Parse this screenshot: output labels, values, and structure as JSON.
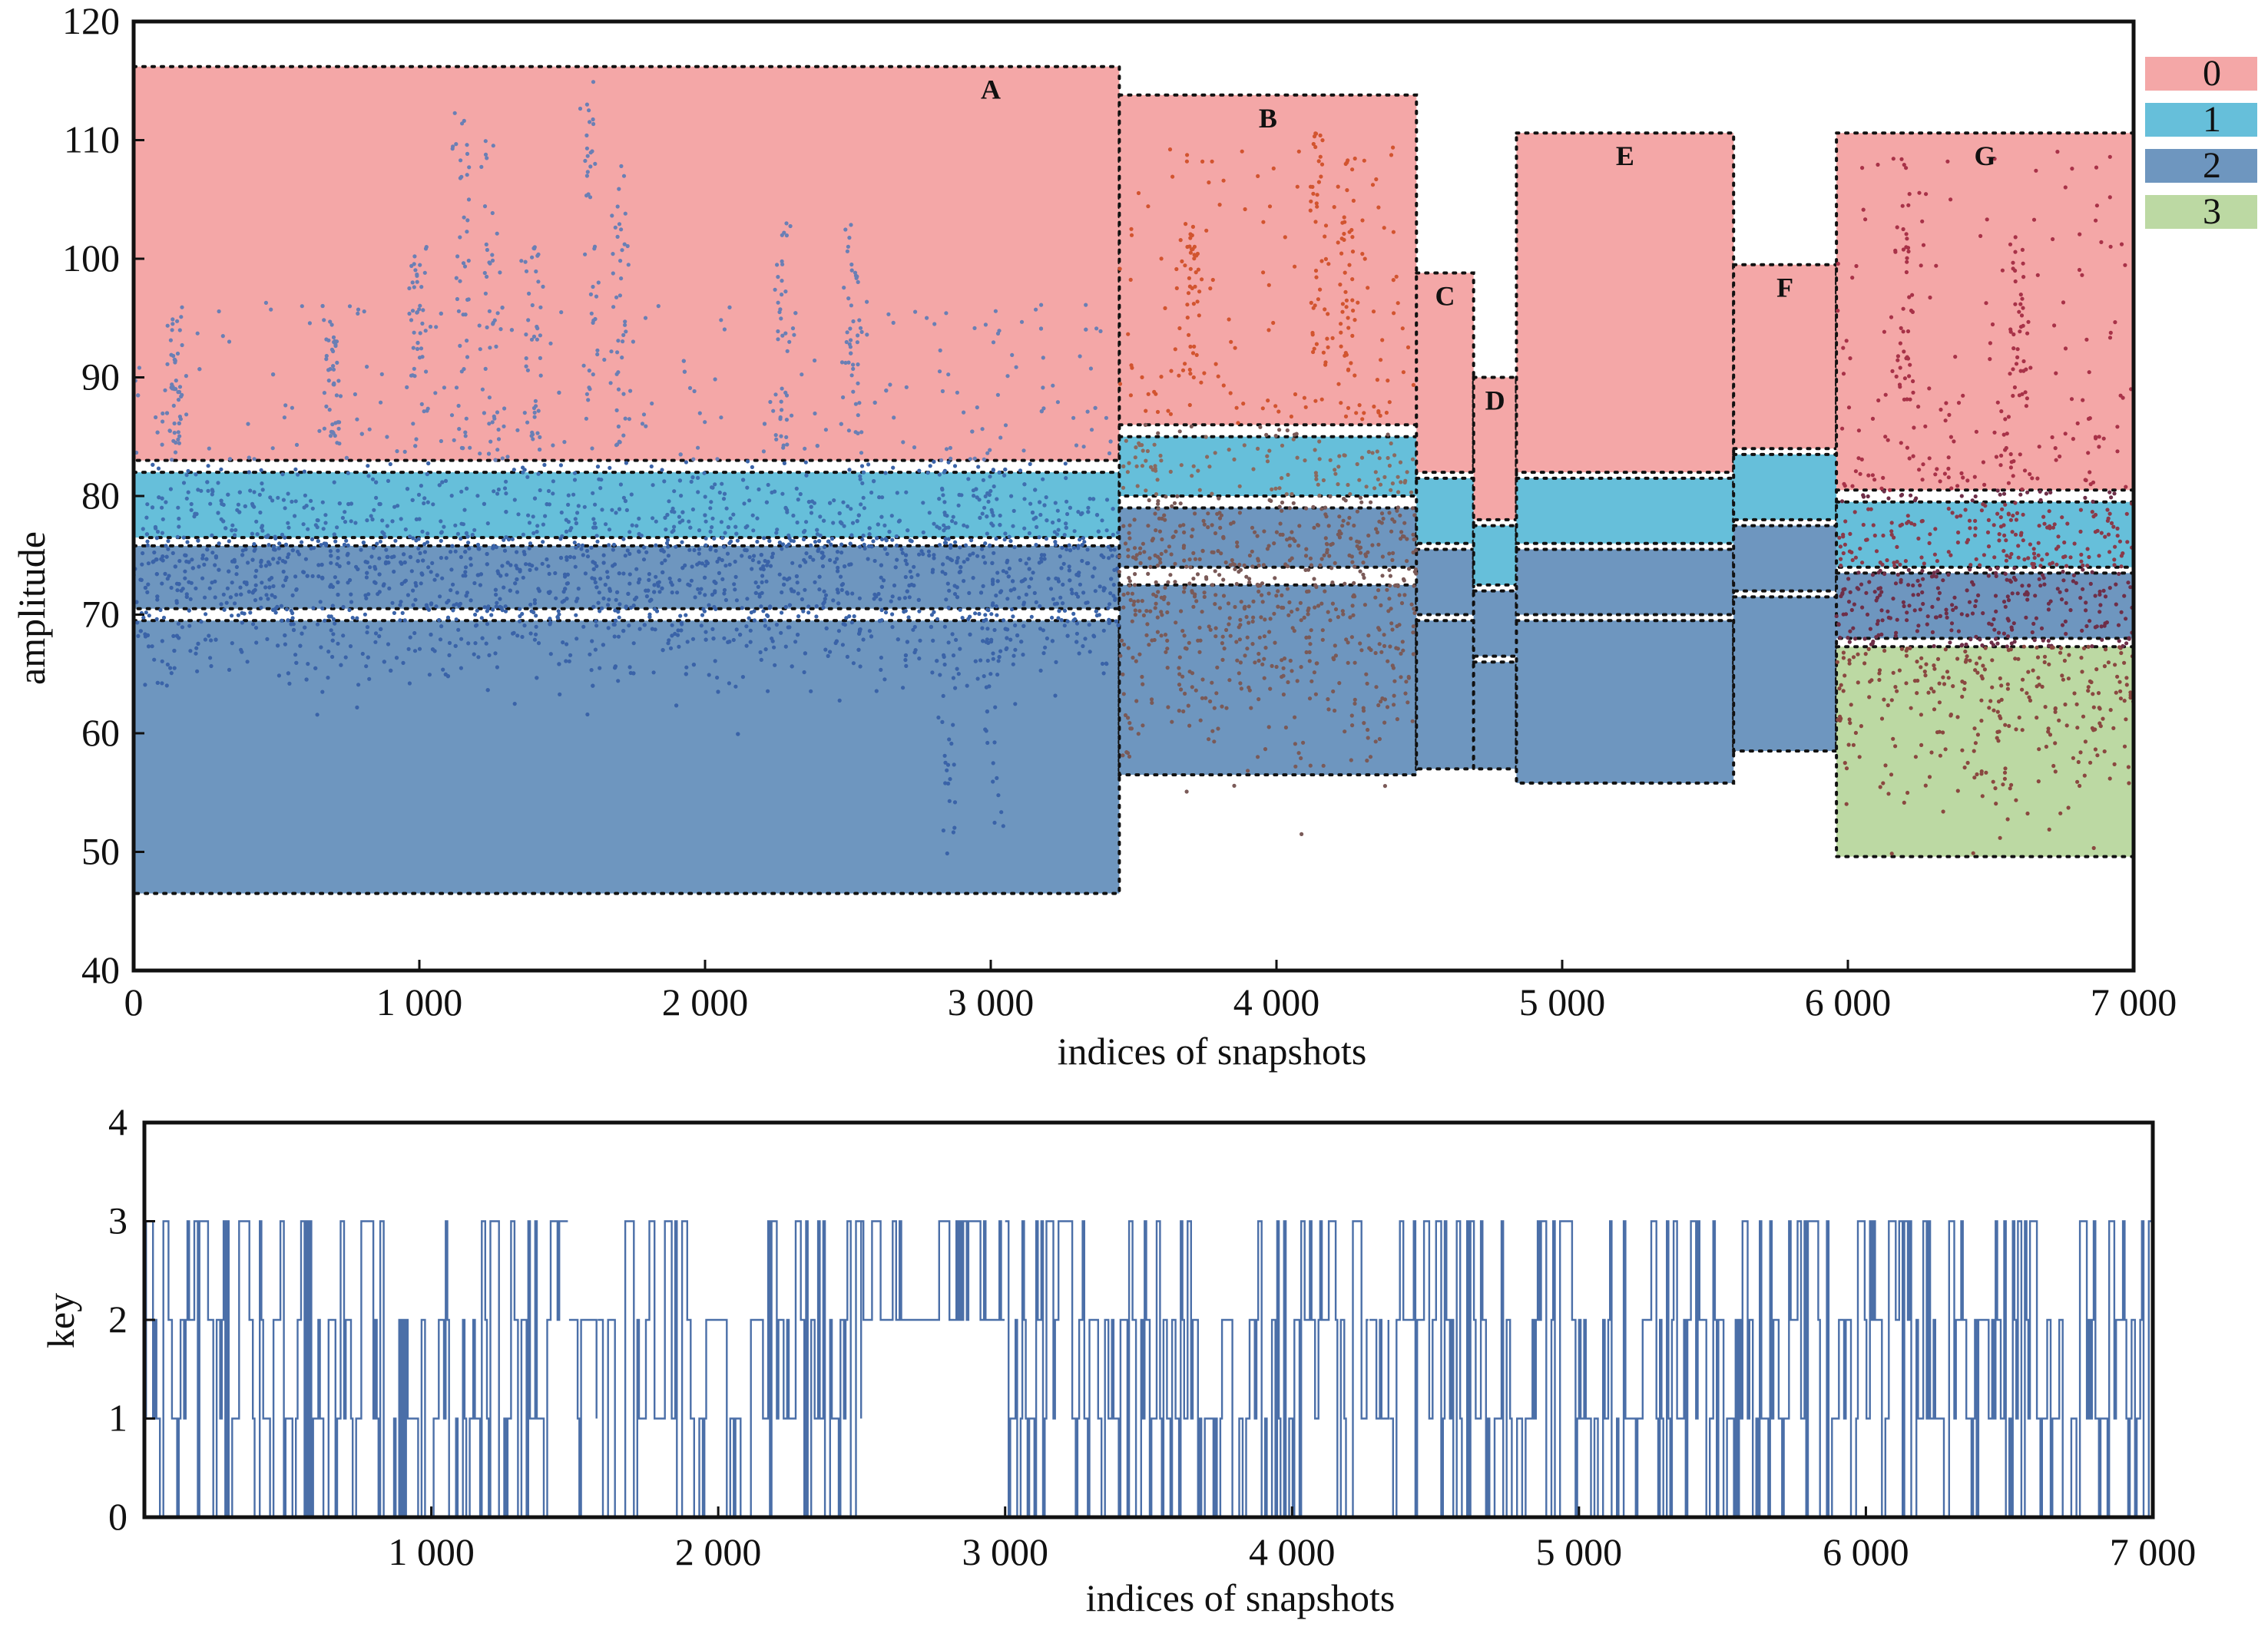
{
  "chart_data": [
    {
      "type": "scatter",
      "xlabel": "indices of snapshots",
      "ylabel": "amplitude",
      "xlim": [
        0,
        7000
      ],
      "ylim": [
        40,
        120
      ],
      "x_ticks": [
        0,
        1000,
        2000,
        3000,
        4000,
        5000,
        6000,
        7000
      ],
      "x_tick_labels": [
        "0",
        "1 000",
        "2 000",
        "3 000",
        "4 000",
        "5 000",
        "6 000",
        "7 000"
      ],
      "y_ticks": [
        40,
        50,
        60,
        70,
        80,
        90,
        100,
        110,
        120
      ],
      "y_tick_labels": [
        "40",
        "50",
        "60",
        "70",
        "80",
        "90",
        "100",
        "110",
        "120"
      ],
      "grid": false,
      "legend_position": "right, outside plot",
      "legend": [
        {
          "label": "0",
          "color": "#F4A7A7"
        },
        {
          "label": "1",
          "color": "#66BFDA"
        },
        {
          "label": "2",
          "color": "#6E96BF"
        },
        {
          "label": "3",
          "color": "#BCD9A3"
        }
      ],
      "regions": [
        {
          "label": "A",
          "x": [
            0,
            3450
          ],
          "bands": [
            {
              "key": 0,
              "y": [
                83,
                116.2
              ]
            },
            {
              "key": 1,
              "y": [
                76.5,
                82
              ]
            },
            {
              "key": 2,
              "y": [
                70.5,
                75.8
              ]
            },
            {
              "key": 2,
              "y": [
                46.5,
                69.5
              ]
            }
          ]
        },
        {
          "label": "B",
          "x": [
            3450,
            4490
          ],
          "bands": [
            {
              "key": 0,
              "y": [
                86,
                113.8
              ]
            },
            {
              "key": 1,
              "y": [
                80,
                85
              ]
            },
            {
              "key": 2,
              "y": [
                74,
                79
              ]
            },
            {
              "key": 2,
              "y": [
                56.5,
                72.5
              ]
            }
          ]
        },
        {
          "label": "C",
          "x": [
            4490,
            4690
          ],
          "bands": [
            {
              "key": 0,
              "y": [
                82,
                98.8
              ]
            },
            {
              "key": 1,
              "y": [
                76,
                81.5
              ]
            },
            {
              "key": 2,
              "y": [
                70,
                75.5
              ]
            },
            {
              "key": 2,
              "y": [
                57,
                69.5
              ]
            }
          ]
        },
        {
          "label": "D",
          "x": [
            4690,
            4840
          ],
          "bands": [
            {
              "key": 0,
              "y": [
                78,
                90
              ]
            },
            {
              "key": 1,
              "y": [
                72.5,
                77.5
              ]
            },
            {
              "key": 2,
              "y": [
                66.5,
                72
              ]
            },
            {
              "key": 2,
              "y": [
                57,
                66
              ]
            }
          ]
        },
        {
          "label": "E",
          "x": [
            4840,
            5600
          ],
          "bands": [
            {
              "key": 0,
              "y": [
                82,
                110.6
              ]
            },
            {
              "key": 1,
              "y": [
                76,
                81.5
              ]
            },
            {
              "key": 2,
              "y": [
                70,
                75.5
              ]
            },
            {
              "key": 2,
              "y": [
                55.8,
                69.5
              ]
            }
          ]
        },
        {
          "label": "F",
          "x": [
            5600,
            5960
          ],
          "bands": [
            {
              "key": 0,
              "y": [
                84,
                99.5
              ]
            },
            {
              "key": 1,
              "y": [
                78,
                83.5
              ]
            },
            {
              "key": 2,
              "y": [
                72,
                77.5
              ]
            },
            {
              "key": 2,
              "y": [
                58.5,
                71.5
              ]
            }
          ]
        },
        {
          "label": "G",
          "x": [
            5960,
            7000
          ],
          "bands": [
            {
              "key": 0,
              "y": [
                80.5,
                110.6
              ]
            },
            {
              "key": 1,
              "y": [
                74,
                79.5
              ]
            },
            {
              "key": 2,
              "y": [
                68,
                73.5
              ]
            },
            {
              "key": 3,
              "y": [
                49.6,
                67.3
              ]
            }
          ]
        }
      ],
      "series": [
        {
          "segment": "0-3450",
          "x": [
            0,
            3450
          ],
          "y_dense": [
            64,
            84
          ],
          "y_spikes": [
            {
              "x": 1150,
              "y": 113
            },
            {
              "x": 1250,
              "y": 110
            },
            {
              "x": 1600,
              "y": 115
            },
            {
              "x": 1700,
              "y": 108
            },
            {
              "x": 1000,
              "y": 103
            },
            {
              "x": 1400,
              "y": 101
            },
            {
              "x": 2270,
              "y": 103
            },
            {
              "x": 2520,
              "y": 103
            },
            {
              "x": 2850,
              "y": 49
            },
            {
              "x": 3000,
              "y": 52
            },
            {
              "x": 150,
              "y": 95
            },
            {
              "x": 700,
              "y": 95
            }
          ]
        },
        {
          "segment": "3450-4490",
          "x": [
            3450,
            4490
          ],
          "y_dense": [
            58,
            90
          ],
          "y_spikes": [
            {
              "x": 4150,
              "y": 111
            },
            {
              "x": 4250,
              "y": 109
            },
            {
              "x": 3700,
              "y": 103
            }
          ]
        },
        {
          "segment": "5960-7000",
          "x": [
            5960,
            7000
          ],
          "y_dense": [
            54,
            88
          ],
          "y_spikes": [
            {
              "x": 6200,
              "y": 106
            },
            {
              "x": 6600,
              "y": 102
            },
            {
              "x": 6550,
              "y": 52
            }
          ]
        }
      ]
    },
    {
      "type": "line",
      "xlabel": "indices of snapshots",
      "ylabel": "key",
      "xlim": [
        0,
        7000
      ],
      "ylim": [
        0,
        4
      ],
      "x_ticks": [
        1000,
        2000,
        3000,
        4000,
        5000,
        6000,
        7000
      ],
      "x_tick_labels": [
        "1 000",
        "2 000",
        "3 000",
        "4 000",
        "5 000",
        "6 000",
        "7 000"
      ],
      "y_ticks": [
        0,
        1,
        2,
        3,
        4
      ],
      "y_tick_labels": [
        "0",
        "1",
        "2",
        "3",
        "4"
      ],
      "grid": false,
      "segments": [
        {
          "x": [
            0,
            1480
          ],
          "keys": [
            0,
            3
          ]
        },
        {
          "x": [
            1480,
            1580
          ],
          "keys": [
            0,
            2
          ]
        },
        {
          "x": [
            1580,
            2500
          ],
          "keys": [
            0,
            3
          ]
        },
        {
          "x": [
            2500,
            3000
          ],
          "keys": [
            2,
            3
          ]
        },
        {
          "x": [
            3000,
            4270
          ],
          "keys": [
            0,
            3
          ]
        },
        {
          "x": [
            4270,
            4340
          ],
          "keys": [
            1,
            2
          ]
        },
        {
          "x": [
            4340,
            7000
          ],
          "keys": [
            0,
            3
          ]
        }
      ]
    }
  ]
}
